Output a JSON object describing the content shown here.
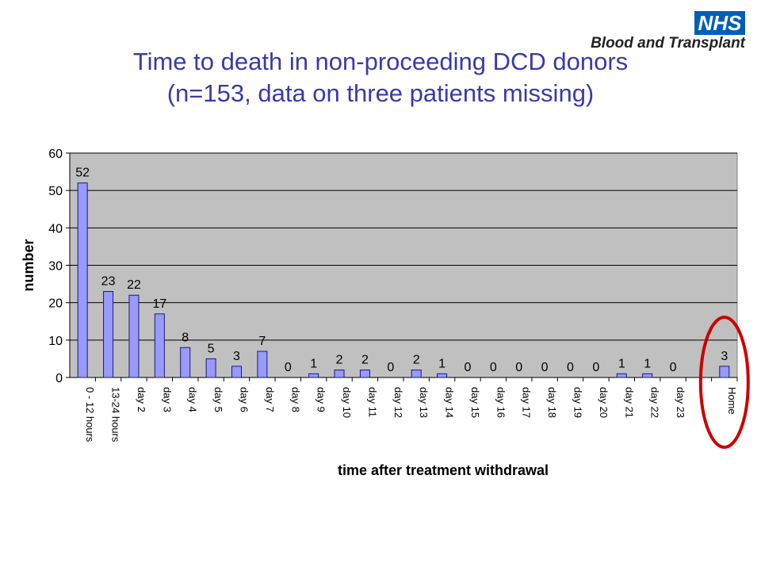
{
  "header": {
    "logo_nhs": "NHS",
    "org_name": "Blood and Transplant"
  },
  "title": {
    "line1": "Time to death in non-proceeding DCD donors",
    "line2": "(n=153, data on three patients missing)"
  },
  "colors": {
    "plot_bg": "#c0c0c0",
    "bar_fill": "#9999ff",
    "bar_stroke": "#1a1a6e",
    "title": "#3a3aa8",
    "highlight_circle": "#cc0000"
  },
  "chart_data": {
    "type": "bar",
    "title": "",
    "xlabel": "time after treatment withdrawal",
    "ylabel": "number",
    "ylim": [
      0,
      60
    ],
    "yticks": [
      0,
      10,
      20,
      30,
      40,
      50,
      60
    ],
    "grid": true,
    "categories": [
      "0 - 12 hours",
      "13-24 hours",
      "day 2",
      "day 3",
      "day 4",
      "day 5",
      "day 6",
      "day 7",
      "day 8",
      "day 9",
      "day 10",
      "day 11",
      "day 12",
      "day 13",
      "day 14",
      "day 15",
      "day 16",
      "day 17",
      "day 18",
      "day 19",
      "day 20",
      "day 21",
      "day 22",
      "day 23",
      "",
      "Home"
    ],
    "values": [
      52,
      23,
      22,
      17,
      8,
      5,
      3,
      7,
      0,
      1,
      2,
      2,
      0,
      2,
      1,
      0,
      0,
      0,
      0,
      0,
      0,
      1,
      1,
      0,
      null,
      3
    ],
    "annotation": "red circle highlighting Home bar"
  }
}
